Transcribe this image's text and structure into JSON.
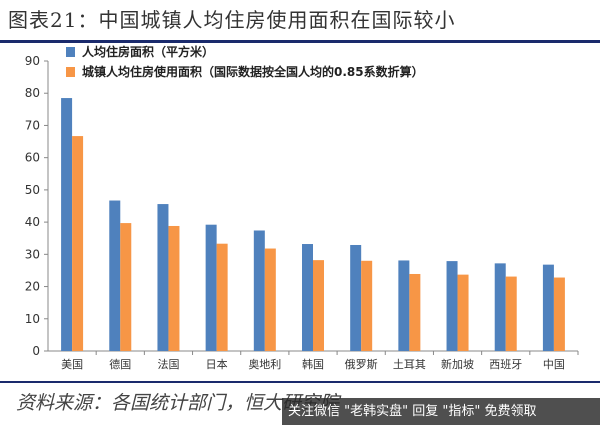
{
  "title": "图表21：中国城镇人均住房使用面积在国际较小",
  "source": "资料来源：各国统计部门，恒大研究院",
  "watermark": "关注微信 \"老韩实盘\" 回复 \"指标\" 免费领取",
  "colors": {
    "series1": "#4f81bd",
    "series2": "#f79646",
    "rule": "#1a2a6c"
  },
  "chart_data": {
    "type": "bar",
    "title": "图表21：中国城镇人均住房使用面积在国际较小",
    "xlabel": "",
    "ylabel": "",
    "ylim": [
      0,
      90
    ],
    "yticks": [
      0,
      10,
      20,
      30,
      40,
      50,
      60,
      70,
      80,
      90
    ],
    "grid": false,
    "legend_position": "top-left",
    "categories": [
      "美国",
      "德国",
      "法国",
      "日本",
      "奥地利",
      "韩国",
      "俄罗斯",
      "土耳其",
      "新加坡",
      "西班牙",
      "中国"
    ],
    "series": [
      {
        "name": "人均住房面积（平方米）",
        "values": [
          78.5,
          46.7,
          45.6,
          39.2,
          37.4,
          33.2,
          32.9,
          28.1,
          27.9,
          27.2,
          26.8
        ]
      },
      {
        "name": "城镇人均住房使用面积（国际数据按全国人均的0.85系数折算）",
        "values": [
          66.7,
          39.7,
          38.8,
          33.3,
          31.8,
          28.2,
          28.0,
          23.9,
          23.7,
          23.1,
          22.8
        ]
      }
    ]
  }
}
